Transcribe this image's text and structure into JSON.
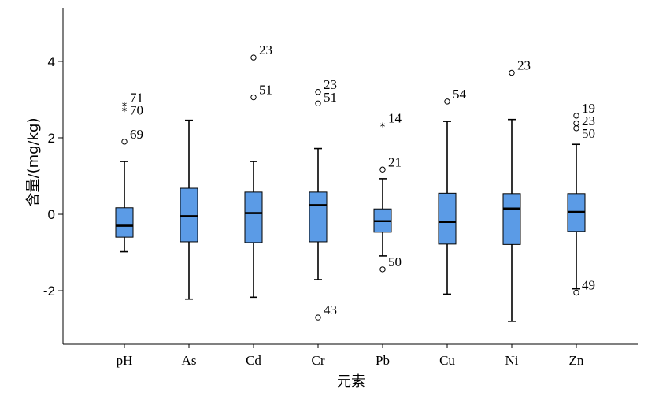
{
  "chart_data": {
    "type": "boxplot",
    "xlabel": "元素",
    "ylabel": "含量/(mg/kg)",
    "ylim": [
      -3.4,
      5.4
    ],
    "yticks": [
      -2,
      0,
      2,
      4
    ],
    "grid": false,
    "colors": {
      "box_fill": "#5b9be6",
      "line": "#000000"
    },
    "categories": [
      "pH",
      "As",
      "Cd",
      "Cr",
      "Pb",
      "Cu",
      "Ni",
      "Zn"
    ],
    "boxes": [
      {
        "name": "pH",
        "whisker_low": -0.98,
        "q1": -0.6,
        "median": -0.3,
        "q3": 0.17,
        "whisker_high": 1.38,
        "outliers": [
          {
            "value": 2.85,
            "symbol": "star",
            "label": "71"
          },
          {
            "value": 2.72,
            "symbol": "star",
            "label": "70"
          },
          {
            "value": 1.9,
            "symbol": "circle",
            "label": "69"
          }
        ]
      },
      {
        "name": "As",
        "whisker_low": -2.22,
        "q1": -0.72,
        "median": -0.05,
        "q3": 0.68,
        "whisker_high": 2.46,
        "outliers": []
      },
      {
        "name": "Cd",
        "whisker_low": -2.17,
        "q1": -0.74,
        "median": 0.03,
        "q3": 0.58,
        "whisker_high": 1.38,
        "outliers": [
          {
            "value": 4.1,
            "symbol": "circle",
            "label": "23"
          },
          {
            "value": 3.06,
            "symbol": "circle",
            "label": "51"
          }
        ]
      },
      {
        "name": "Cr",
        "whisker_low": -1.71,
        "q1": -0.72,
        "median": 0.24,
        "q3": 0.58,
        "whisker_high": 1.72,
        "outliers": [
          {
            "value": 3.2,
            "symbol": "circle",
            "label": "23"
          },
          {
            "value": 2.9,
            "symbol": "circle",
            "label": "51"
          },
          {
            "value": -2.7,
            "symbol": "circle",
            "label": "43"
          }
        ]
      },
      {
        "name": "Pb",
        "whisker_low": -1.09,
        "q1": -0.47,
        "median": -0.18,
        "q3": 0.14,
        "whisker_high": 0.93,
        "outliers": [
          {
            "value": 2.32,
            "symbol": "star",
            "label": "14"
          },
          {
            "value": 1.17,
            "symbol": "circle",
            "label": "21"
          },
          {
            "value": -1.44,
            "symbol": "circle",
            "label": "50"
          }
        ]
      },
      {
        "name": "Cu",
        "whisker_low": -2.09,
        "q1": -0.78,
        "median": -0.2,
        "q3": 0.55,
        "whisker_high": 2.43,
        "outliers": [
          {
            "value": 2.95,
            "symbol": "circle",
            "label": "54"
          }
        ]
      },
      {
        "name": "Ni",
        "whisker_low": -2.8,
        "q1": -0.79,
        "median": 0.15,
        "q3": 0.54,
        "whisker_high": 2.48,
        "outliers": [
          {
            "value": 3.7,
            "symbol": "circle",
            "label": "23"
          }
        ]
      },
      {
        "name": "Zn",
        "whisker_low": -1.95,
        "q1": -0.45,
        "median": 0.06,
        "q3": 0.54,
        "whisker_high": 1.83,
        "outliers": [
          {
            "value": 2.58,
            "symbol": "circle",
            "label": "19"
          },
          {
            "value": 2.38,
            "symbol": "circle",
            "label": "23"
          },
          {
            "value": 2.25,
            "symbol": "circle",
            "label": "50"
          },
          {
            "value": -2.05,
            "symbol": "circle",
            "label": "49"
          }
        ]
      }
    ]
  }
}
